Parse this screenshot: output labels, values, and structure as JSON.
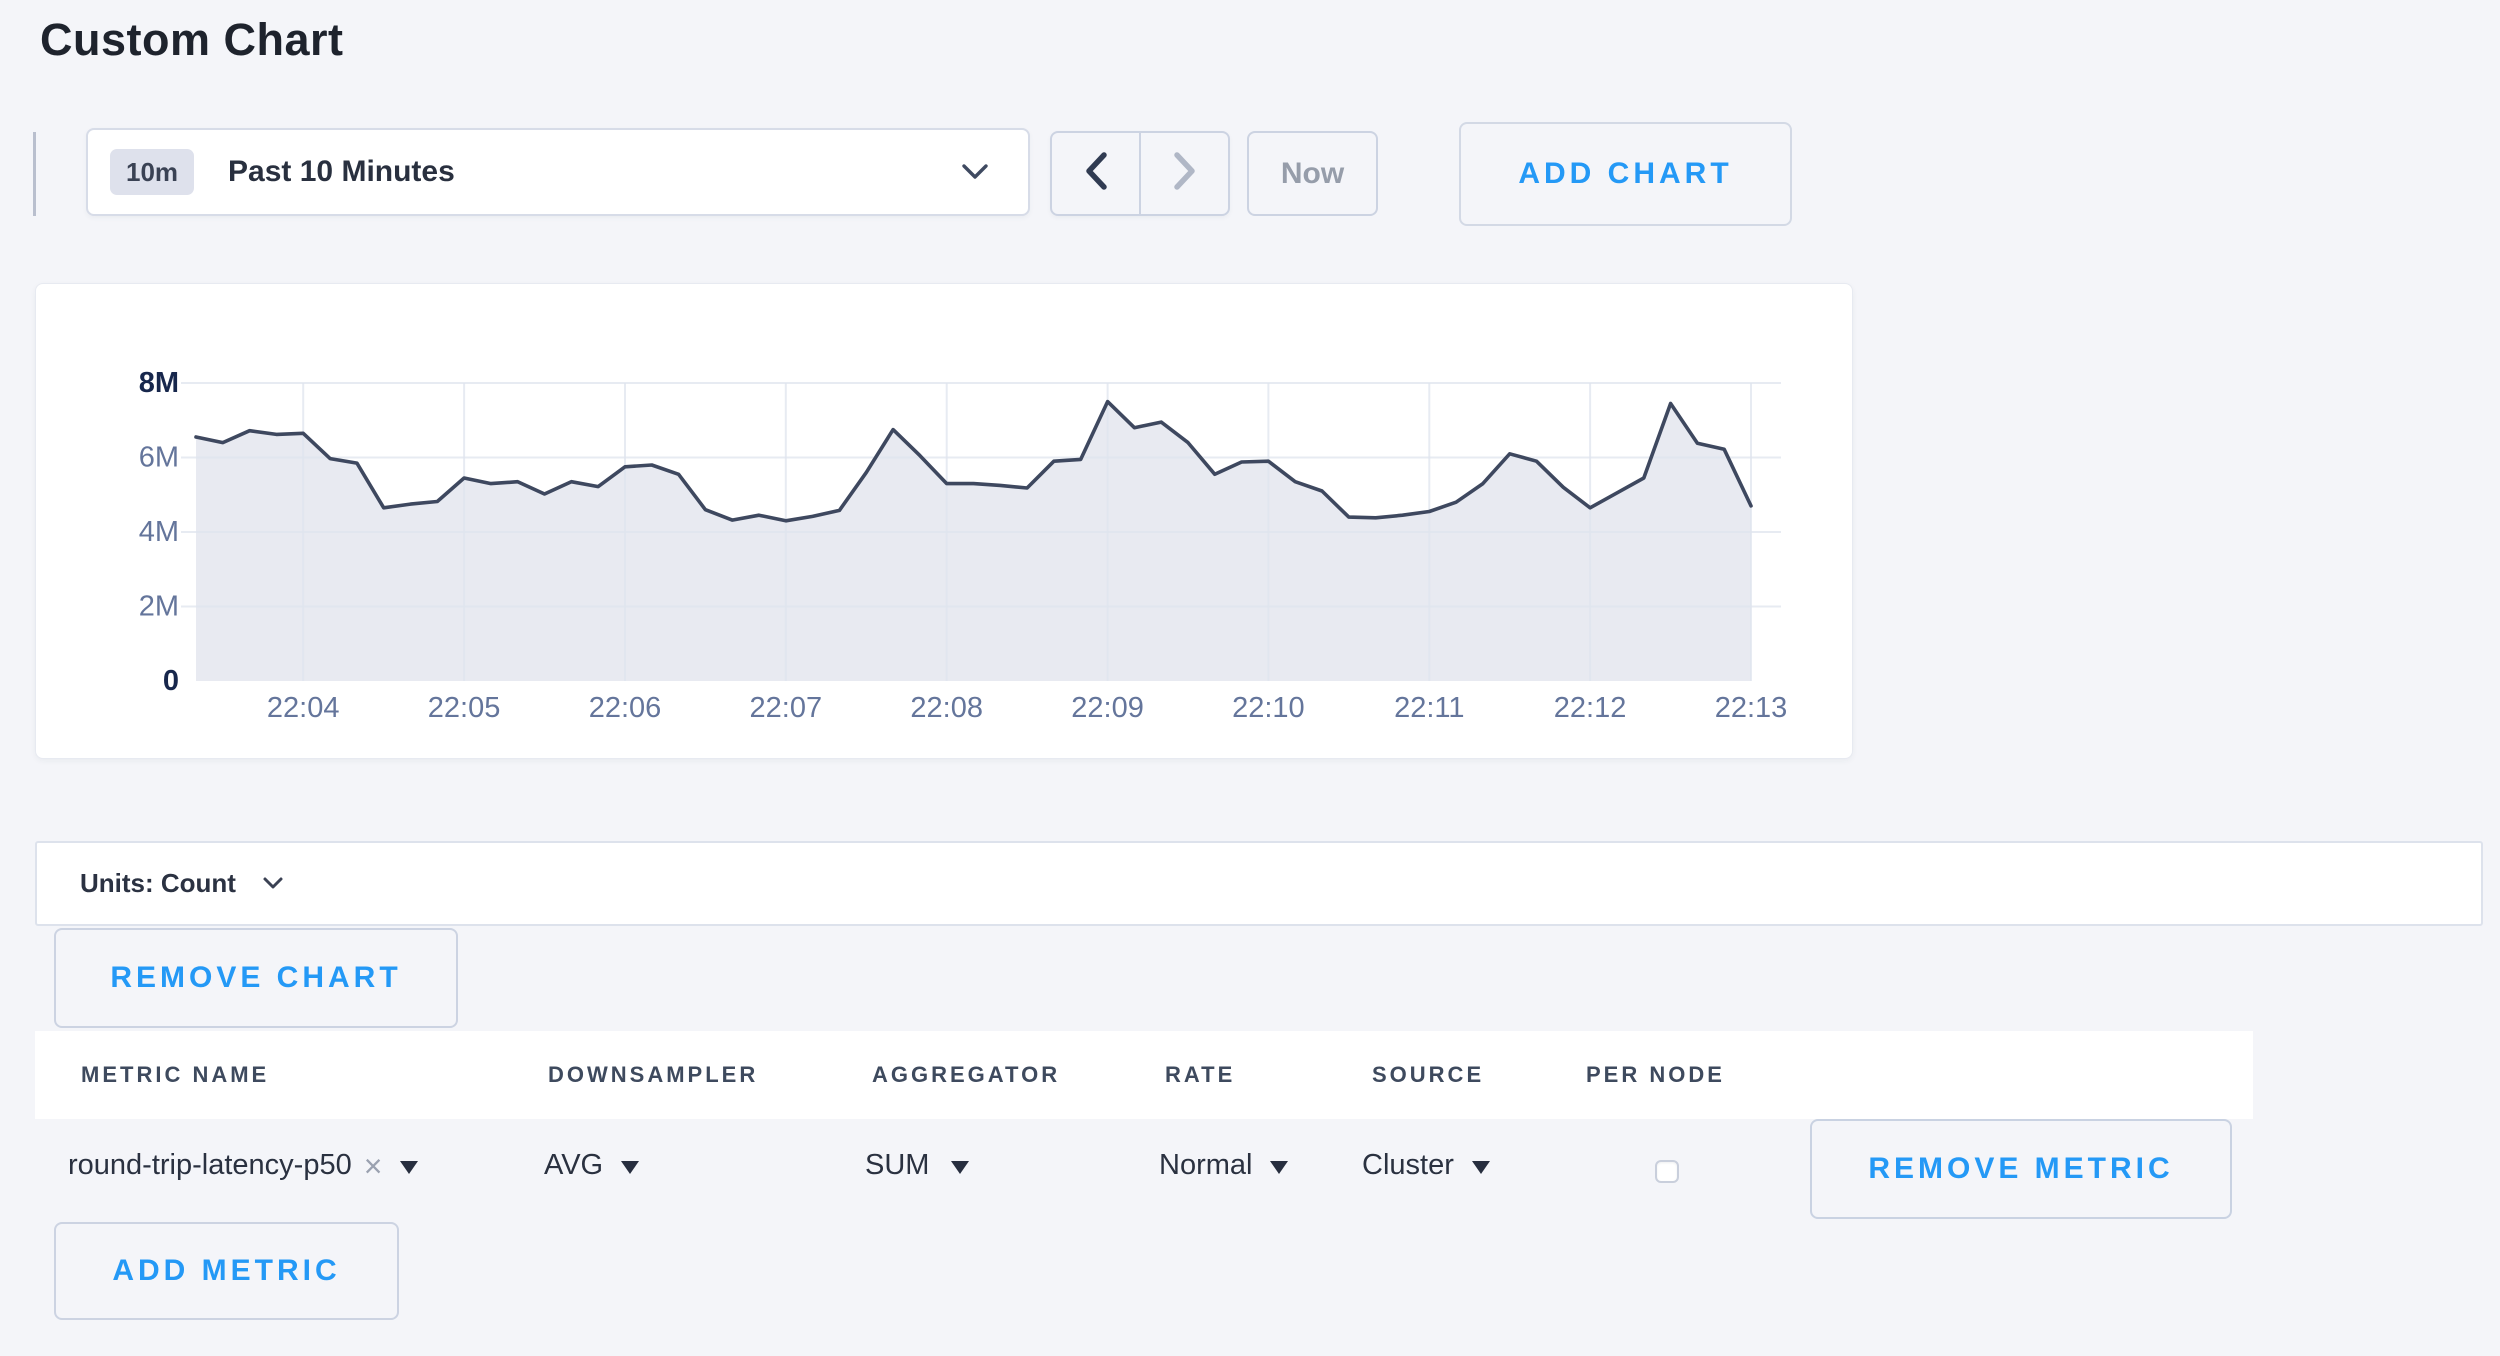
{
  "page": {
    "title": "Custom Chart"
  },
  "toolbar": {
    "time_badge": "10m",
    "time_label": "Past 10 Minutes",
    "now_label": "Now",
    "add_chart_label": "ADD CHART"
  },
  "units_bar": {
    "label": "Units: Count"
  },
  "chart_section": {
    "remove_chart_label": "REMOVE CHART"
  },
  "metrics_table": {
    "headers": [
      "METRIC NAME",
      "DOWNSAMPLER",
      "AGGREGATOR",
      "RATE",
      "SOURCE",
      "PER NODE"
    ],
    "rows": [
      {
        "metric_name": "round-trip-latency-p50",
        "downsampler": "AVG",
        "aggregator": "SUM",
        "rate": "Normal",
        "source": "Cluster",
        "per_node_checked": false,
        "remove_label": "REMOVE METRIC"
      }
    ],
    "add_metric_label": "ADD METRIC"
  },
  "chart_data": {
    "type": "area",
    "title": "",
    "series": [
      {
        "name": "round-trip-latency-p50",
        "values_millions": [
          6.55,
          6.4,
          6.72,
          6.62,
          6.65,
          5.97,
          5.85,
          4.65,
          4.75,
          4.82,
          5.45,
          5.3,
          5.35,
          5.02,
          5.35,
          5.22,
          5.75,
          5.8,
          5.55,
          4.6,
          4.32,
          4.45,
          4.3,
          4.42,
          4.58,
          5.6,
          6.75,
          6.05,
          5.3,
          5.3,
          5.25,
          5.18,
          5.9,
          5.95,
          7.5,
          6.8,
          6.95,
          6.4,
          5.55,
          5.88,
          5.9,
          5.35,
          5.1,
          4.4,
          4.38,
          4.45,
          4.55,
          4.8,
          5.3,
          6.1,
          5.9,
          5.2,
          4.65,
          5.05,
          5.45,
          7.45,
          6.38,
          6.22,
          4.7
        ]
      }
    ],
    "x_start": "22:03:20",
    "interval_seconds": 10,
    "x_ticks": [
      "22:04",
      "22:05",
      "22:06",
      "22:07",
      "22:08",
      "22:09",
      "22:10",
      "22:11",
      "22:12",
      "22:13"
    ],
    "y_ticks": [
      {
        "label": "0",
        "value": 0,
        "emphasized": true
      },
      {
        "label": "2M",
        "value": 2,
        "emphasized": false
      },
      {
        "label": "4M",
        "value": 4,
        "emphasized": false
      },
      {
        "label": "6M",
        "value": 6,
        "emphasized": false
      },
      {
        "label": "8M",
        "value": 8,
        "emphasized": true
      }
    ],
    "ylim_millions": [
      0,
      8
    ],
    "grid": true,
    "legend": "none"
  },
  "colors": {
    "accent_blue": "#2499f6",
    "line": "#3e485f",
    "area_fill": "#e8eaf1",
    "grid_line": "#dfe4ee",
    "tick_label": "#64759b",
    "tick_label_emphasized": "#17274c",
    "page_bg": "#f4f5f9"
  }
}
